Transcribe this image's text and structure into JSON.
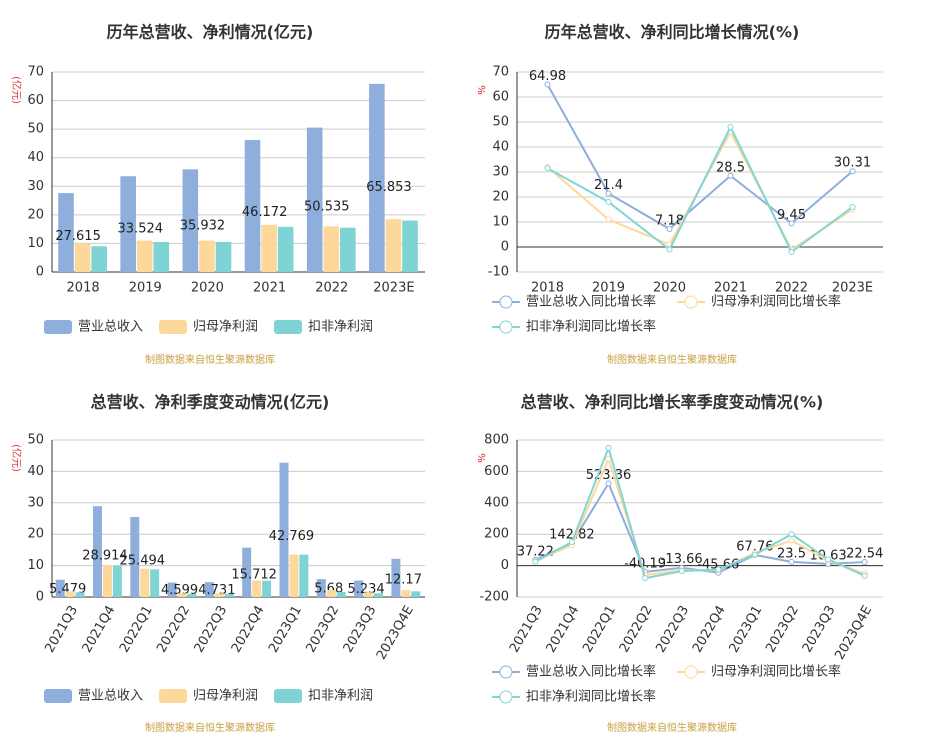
{
  "chart_data": [
    {
      "type": "bar",
      "title": "历年总营收、净利情况(亿元)",
      "y_label": "(亿元)",
      "footer": "制图数据来自恒生聚源数据库",
      "categories": [
        "2018",
        "2019",
        "2020",
        "2021",
        "2022",
        "2023E"
      ],
      "series": [
        {
          "name": "营业总收入",
          "color": "#8eaedc",
          "show_labels": true,
          "values": [
            27.615,
            33.524,
            35.932,
            46.172,
            50.535,
            65.853
          ]
        },
        {
          "name": "归母净利润",
          "color": "#fdd89a",
          "values": [
            10,
            11,
            11,
            16.5,
            16,
            18.5
          ]
        },
        {
          "name": "扣非净利润",
          "color": "#7ed3d4",
          "values": [
            9,
            10.5,
            10.5,
            15.8,
            15.5,
            18
          ]
        }
      ],
      "ylim": [
        0,
        70
      ],
      "yticks": [
        0,
        10,
        20,
        30,
        40,
        50,
        60,
        70
      ],
      "grid": true
    },
    {
      "type": "line",
      "title": "历年总营收、净利同比增长情况(%)",
      "y_label": "%",
      "footer": "制图数据来自恒生聚源数据库",
      "categories": [
        "2018",
        "2019",
        "2020",
        "2021",
        "2022",
        "2023E"
      ],
      "series": [
        {
          "name": "营业总收入同比增长率",
          "color": "#8eaedc",
          "show_labels": true,
          "values": [
            64.98,
            21.4,
            7.18,
            28.5,
            9.45,
            30.31
          ]
        },
        {
          "name": "归母净利润同比增长率",
          "color": "#fdd89a",
          "values": [
            32,
            11,
            1,
            46,
            -1,
            15
          ]
        },
        {
          "name": "扣非净利润同比增长率",
          "color": "#7fd6d7",
          "values": [
            31.5,
            18,
            -1,
            48,
            -2,
            16
          ]
        }
      ],
      "ylim": [
        -10,
        70
      ],
      "yticks": [
        -10,
        0,
        10,
        20,
        30,
        40,
        50,
        60,
        70
      ],
      "grid": true
    },
    {
      "type": "bar",
      "title": "总营收、净利季度变动情况(亿元)",
      "y_label": "(亿元)",
      "footer": "制图数据来自恒生聚源数据库",
      "categories": [
        "2021Q3",
        "2021Q4",
        "2022Q1",
        "2022Q2",
        "2022Q3",
        "2022Q4",
        "2023Q1",
        "2023Q2",
        "2023Q3",
        "2023Q4E"
      ],
      "series": [
        {
          "name": "营业总收入",
          "color": "#8eaedc",
          "show_labels": true,
          "values": [
            5.479,
            28.914,
            25.494,
            4.599,
            4.731,
            15.712,
            42.769,
            5.68,
            5.234,
            12.17
          ]
        },
        {
          "name": "归母净利润",
          "color": "#fdd89a",
          "values": [
            1.8,
            10,
            9,
            1.2,
            1.2,
            5.3,
            13.5,
            2.2,
            1.5,
            2.2
          ]
        },
        {
          "name": "扣非净利润",
          "color": "#7ed3d4",
          "values": [
            1.5,
            10,
            8.8,
            1,
            1,
            5.2,
            13.5,
            1.6,
            1.2,
            1.8
          ]
        }
      ],
      "ylim": [
        0,
        50
      ],
      "yticks": [
        0,
        10,
        20,
        30,
        40,
        50
      ],
      "grid": true
    },
    {
      "type": "line",
      "title": "总营收、净利同比增长率季度变动情况(%)",
      "y_label": "%",
      "footer": "制图数据来自恒生聚源数据库",
      "categories": [
        "2021Q3",
        "2021Q4",
        "2022Q1",
        "2022Q2",
        "2022Q3",
        "2022Q4",
        "2023Q1",
        "2023Q2",
        "2023Q3",
        "2023Q4E"
      ],
      "series": [
        {
          "name": "营业总收入同比增长率",
          "color": "#8eaedc",
          "show_labels": true,
          "values": [
            37.22,
            142.82,
            523.36,
            -40.19,
            -13.66,
            -45.66,
            67.76,
            23.5,
            10.63,
            22.54
          ]
        },
        {
          "name": "归母净利润同比增长率",
          "color": "#fdd89a",
          "values": [
            30,
            130,
            680,
            -60,
            -30,
            -30,
            80,
            160,
            30,
            -50
          ]
        },
        {
          "name": "扣非净利润同比增长率",
          "color": "#7fd6d7",
          "values": [
            25,
            150,
            750,
            -80,
            -35,
            -25,
            70,
            200,
            40,
            -65
          ]
        }
      ],
      "ylim": [
        -200,
        800
      ],
      "yticks": [
        -200,
        0,
        200,
        400,
        600,
        800
      ],
      "grid": true
    }
  ]
}
